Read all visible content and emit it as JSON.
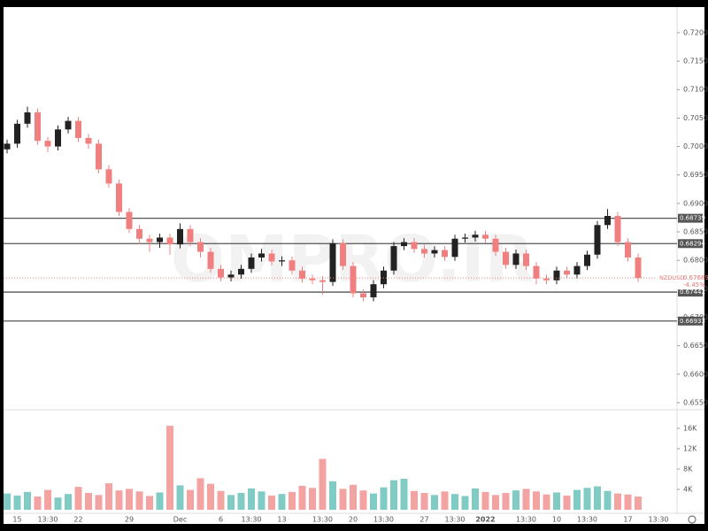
{
  "chart_data": {
    "type": "candlestick",
    "symbol": "NZDUSD",
    "last": {
      "value": 0.67689,
      "label": "0.67689"
    },
    "change": "-4.45%",
    "watermark": "OMPRO.IR",
    "up_color": "#222222",
    "down_color": "#f08080",
    "volume_up_color": "#80cbc4",
    "volume_down_color": "#f4a3a3",
    "categories": [
      null,
      "15",
      null,
      null,
      "13:30",
      null,
      null,
      "22",
      null,
      null,
      null,
      null,
      "29",
      null,
      null,
      null,
      null,
      "Dec",
      null,
      null,
      null,
      "6",
      null,
      null,
      "13:30",
      null,
      null,
      "13",
      null,
      null,
      null,
      "13:30",
      null,
      null,
      "20",
      null,
      null,
      "13:30",
      null,
      null,
      null,
      "27",
      null,
      null,
      "13:30",
      null,
      null,
      "2022",
      null,
      null,
      null,
      "13:30",
      null,
      null,
      "10",
      null,
      null,
      "13:30",
      null,
      null,
      null,
      "17",
      null,
      null,
      "13:30"
    ],
    "open": [
      0.6995,
      0.7005,
      0.704,
      0.706,
      0.701,
      0.7,
      0.703,
      0.7045,
      0.7015,
      0.7005,
      0.696,
      0.6935,
      0.6885,
      0.6855,
      0.6838,
      0.6832,
      0.684,
      0.6828,
      0.6855,
      0.6832,
      0.6815,
      0.6785,
      0.677,
      0.6775,
      0.6785,
      0.6805,
      0.6812,
      0.6798,
      0.68,
      0.6782,
      0.6768,
      0.6765,
      0.6762,
      0.683,
      0.679,
      0.6742,
      0.6735,
      0.6758,
      0.6782,
      0.6825,
      0.6832,
      0.682,
      0.6812,
      0.6818,
      0.6806,
      0.6838,
      0.684,
      0.6845,
      0.6838,
      0.6815,
      0.6792,
      0.6812,
      0.679,
      0.6768,
      0.6765,
      0.6782,
      0.6775,
      0.679,
      0.681,
      0.6862,
      0.6878,
      0.6832,
      0.6805,
      null,
      null
    ],
    "high": [
      0.7012,
      0.7047,
      0.707,
      0.7067,
      0.7017,
      0.7037,
      0.7052,
      0.7052,
      0.7022,
      0.7012,
      0.6967,
      0.6942,
      0.6892,
      0.6862,
      0.6845,
      0.6847,
      0.6847,
      0.6865,
      0.6862,
      0.6839,
      0.6822,
      0.6792,
      0.6782,
      0.6792,
      0.6812,
      0.682,
      0.6819,
      0.6807,
      0.6807,
      0.6789,
      0.6775,
      0.6772,
      0.6837,
      0.6837,
      0.6797,
      0.6749,
      0.6765,
      0.6789,
      0.6832,
      0.6839,
      0.6839,
      0.6827,
      0.6825,
      0.6825,
      0.6845,
      0.6847,
      0.6852,
      0.6852,
      0.6845,
      0.6822,
      0.6819,
      0.6819,
      0.6797,
      0.6775,
      0.6789,
      0.6789,
      0.6797,
      0.6817,
      0.6869,
      0.689,
      0.6885,
      0.6839,
      0.6812,
      null,
      null
    ],
    "low": [
      0.6988,
      0.6998,
      0.7033,
      0.7003,
      0.699,
      0.6993,
      0.7023,
      0.7008,
      0.6996,
      0.6953,
      0.6928,
      0.6878,
      0.6848,
      0.6828,
      0.6815,
      0.6822,
      0.681,
      0.6821,
      0.6825,
      0.6805,
      0.6778,
      0.6763,
      0.6763,
      0.6768,
      0.6778,
      0.6798,
      0.6791,
      0.679,
      0.6775,
      0.6761,
      0.6758,
      0.674,
      0.6755,
      0.6783,
      0.6735,
      0.6728,
      0.6728,
      0.6751,
      0.6775,
      0.6818,
      0.6813,
      0.6805,
      0.6805,
      0.6799,
      0.6799,
      0.6831,
      0.6833,
      0.6831,
      0.6808,
      0.6785,
      0.6785,
      0.6783,
      0.6758,
      0.6758,
      0.6758,
      0.6768,
      0.6768,
      0.6783,
      0.6803,
      0.6855,
      0.6825,
      0.6798,
      0.6762,
      null,
      null
    ],
    "close": [
      0.7005,
      0.704,
      0.706,
      0.701,
      0.7,
      0.703,
      0.7045,
      0.7015,
      0.7005,
      0.696,
      0.6935,
      0.6885,
      0.6855,
      0.6838,
      0.6832,
      0.684,
      0.6828,
      0.6855,
      0.6832,
      0.6815,
      0.6785,
      0.677,
      0.6775,
      0.6785,
      0.6805,
      0.6812,
      0.6798,
      0.68,
      0.6782,
      0.6768,
      0.6765,
      0.6762,
      0.683,
      0.679,
      0.6742,
      0.6735,
      0.6758,
      0.6782,
      0.6825,
      0.6832,
      0.682,
      0.6812,
      0.6818,
      0.6806,
      0.6838,
      0.684,
      0.6845,
      0.6838,
      0.6815,
      0.6792,
      0.6812,
      0.679,
      0.6768,
      0.6765,
      0.6782,
      0.6775,
      0.679,
      0.681,
      0.6862,
      0.6878,
      0.6832,
      0.6805,
      0.6769,
      null,
      null
    ],
    "volume": [
      3200,
      2800,
      3500,
      2600,
      3900,
      2400,
      3100,
      4500,
      3300,
      2900,
      5200,
      3800,
      4100,
      3600,
      2700,
      3400,
      16500,
      4800,
      3900,
      6200,
      5100,
      3700,
      2900,
      3300,
      4200,
      3600,
      2800,
      3100,
      3500,
      4700,
      4300,
      10000,
      5600,
      4100,
      4900,
      3800,
      3200,
      4400,
      5800,
      6100,
      3700,
      3300,
      2900,
      3600,
      3100,
      2700,
      4200,
      3500,
      2900,
      3300,
      3800,
      4100,
      3600,
      3000,
      3400,
      2800,
      3900,
      4300,
      4600,
      3700,
      3200,
      3000,
      2600,
      null,
      null
    ],
    "ylim": [
      0.6539,
      0.7245
    ],
    "yticks": [
      {
        "value": 0.655,
        "label": "0.65500"
      },
      {
        "value": 0.66,
        "label": "0.66000"
      },
      {
        "value": 0.665,
        "label": "0.66500"
      },
      {
        "value": 0.67,
        "label": "0.67000"
      },
      {
        "value": 0.675,
        "label": "0.67500"
      },
      {
        "value": 0.68,
        "label": "0.68000"
      },
      {
        "value": 0.685,
        "label": "0.68500"
      },
      {
        "value": 0.69,
        "label": "0.69000"
      },
      {
        "value": 0.695,
        "label": "0.69500"
      },
      {
        "value": 0.7,
        "label": "0.70000"
      },
      {
        "value": 0.705,
        "label": "0.70500"
      },
      {
        "value": 0.71,
        "label": "0.71000"
      },
      {
        "value": 0.715,
        "label": "0.71500"
      },
      {
        "value": 0.72,
        "label": "0.72000"
      }
    ],
    "levels": [
      {
        "value": 0.68739,
        "label": "0.68739"
      },
      {
        "value": 0.68294,
        "label": "0.68294"
      },
      {
        "value": 0.67442,
        "label": "0.67442"
      },
      {
        "value": 0.66933,
        "label": "0.66933"
      }
    ],
    "y2lim": [
      0,
      19650
    ],
    "y2ticks": [
      {
        "value": 4000,
        "label": "4K"
      },
      {
        "value": 8000,
        "label": "8K"
      },
      {
        "value": 12000,
        "label": "12K"
      },
      {
        "value": 16000,
        "label": "16K"
      }
    ]
  }
}
